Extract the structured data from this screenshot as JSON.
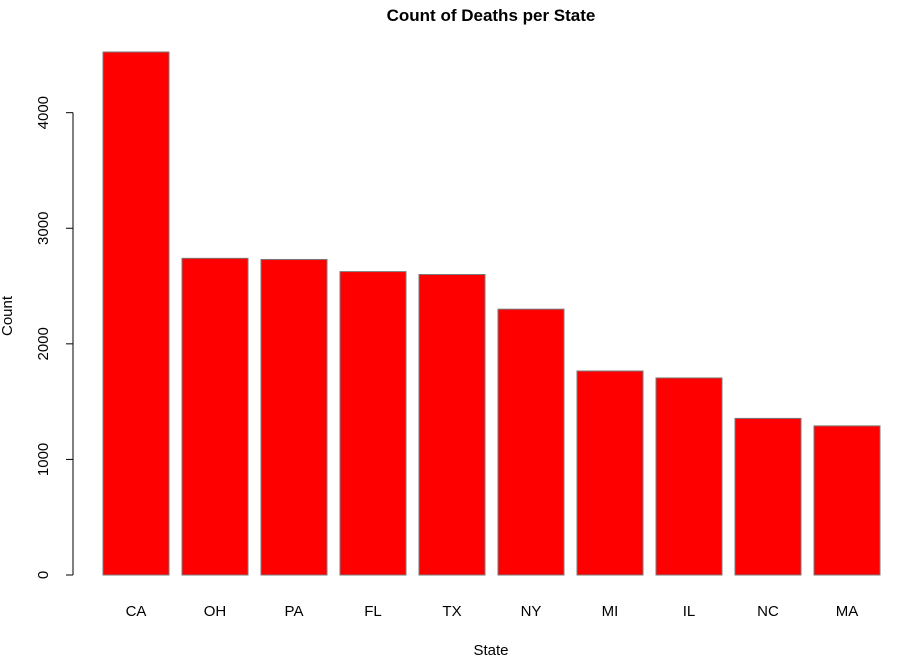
{
  "chart_data": {
    "type": "bar",
    "title": "Count of Deaths per State",
    "xlabel": "State",
    "ylabel": "Count",
    "categories": [
      "CA",
      "OH",
      "PA",
      "FL",
      "TX",
      "NY",
      "MI",
      "IL",
      "NC",
      "MA"
    ],
    "values": [
      4525,
      2740,
      2730,
      2625,
      2600,
      2300,
      1765,
      1705,
      1355,
      1290
    ],
    "ylim": [
      0,
      4525
    ],
    "yticks": [
      0,
      1000,
      2000,
      3000,
      4000
    ],
    "ytick_labels": [
      "0",
      "1000",
      "2000",
      "3000",
      "4000"
    ],
    "bar_color": "#ff0000",
    "bar_border_color": "#7a7a7a",
    "grid": false,
    "legend": "none"
  }
}
